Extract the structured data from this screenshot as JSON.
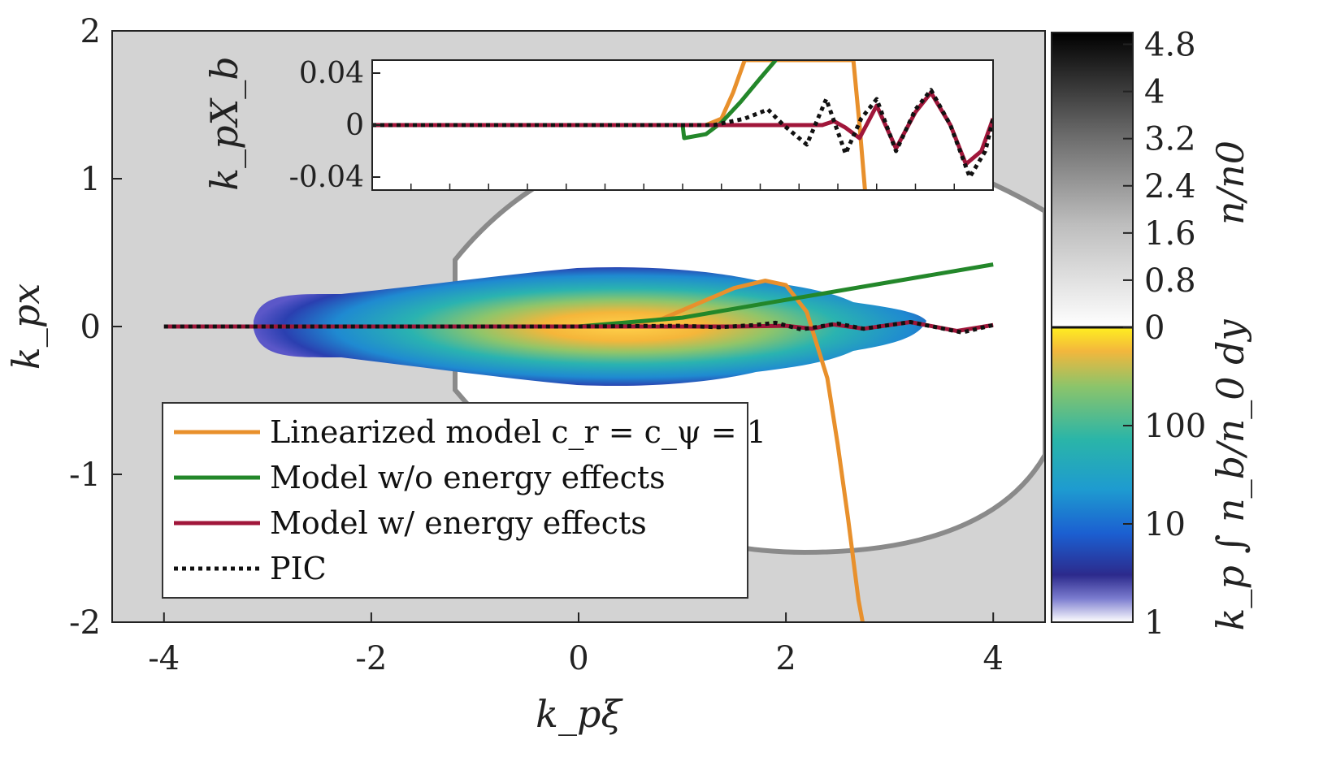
{
  "chart_data": [
    {
      "name": "main",
      "type": "line",
      "xlabel": "k_pξ",
      "ylabel": "k_px",
      "xlim": [
        -4.5,
        4.5
      ],
      "ylim": [
        -2,
        2
      ],
      "xticks": [
        -4,
        -2,
        0,
        2,
        4
      ],
      "xtick_labels": [
        "-4",
        "-2",
        "0",
        "2",
        "4"
      ],
      "yticks": [
        2,
        1,
        0,
        -1,
        -2
      ],
      "ytick_labels": [
        "2",
        "1",
        "0",
        "-1",
        "-2"
      ],
      "background": "density maps: plasma density n/n0 (grayscale) with beam density (color)",
      "legend": {
        "position": "lower-left",
        "entries": [
          {
            "label": "Linearized model c_r = c_ψ = 1",
            "color": "#e8902c",
            "style": "solid"
          },
          {
            "label": "Model w/o energy effects",
            "color": "#23872a",
            "style": "solid"
          },
          {
            "label": "Model w/ energy effects",
            "color": "#a0163a",
            "style": "solid"
          },
          {
            "label": "PIC",
            "color": "#111111",
            "style": "dotted"
          }
        ]
      },
      "series": [
        {
          "name": "Linearized model c_r = c_ψ = 1",
          "color": "#e8902c",
          "x": [
            0,
            0.4,
            0.8,
            1.2,
            1.5,
            1.8,
            2.0,
            2.2,
            2.4,
            2.5,
            2.6,
            2.7,
            2.74
          ],
          "y": [
            0,
            0.005,
            0.05,
            0.17,
            0.26,
            0.31,
            0.28,
            0.1,
            -0.35,
            -0.8,
            -1.3,
            -1.85,
            -2.0
          ]
        },
        {
          "name": "Model w/o energy effects",
          "color": "#23872a",
          "x": [
            0,
            1,
            2,
            3,
            4
          ],
          "y": [
            0,
            0.06,
            0.18,
            0.3,
            0.42
          ]
        },
        {
          "name": "Model w/ energy effects",
          "color": "#a0163a",
          "x": [
            -4,
            -3,
            -2,
            -1,
            0,
            1,
            1.5,
            2.0,
            2.25,
            2.45,
            2.75,
            3.2,
            3.65,
            4.0
          ],
          "y": [
            0,
            0,
            0,
            0,
            0,
            0,
            0,
            0.005,
            -0.015,
            0.015,
            -0.015,
            0.03,
            -0.03,
            0.01
          ]
        },
        {
          "name": "PIC",
          "color": "#111111",
          "x": [
            -4,
            -3,
            -2,
            -1,
            0,
            1,
            1.35,
            1.7,
            1.9,
            2.15,
            2.5,
            2.75,
            3.2,
            3.7,
            4.0
          ],
          "y": [
            0,
            0,
            0,
            0,
            0,
            0.005,
            -0.005,
            0.01,
            0.025,
            -0.02,
            0.02,
            -0.015,
            0.03,
            -0.04,
            0.01
          ]
        }
      ]
    },
    {
      "name": "inset",
      "type": "line",
      "ylabel": "k_pX_b",
      "xlim": [
        -4,
        4
      ],
      "ylim": [
        -0.05,
        0.05
      ],
      "yticks": [
        0.04,
        0,
        -0.04
      ],
      "ytick_labels": [
        "0.04",
        "0",
        "-0.04"
      ],
      "series": [
        {
          "name": "Linearized model c_r = c_ψ = 1",
          "color": "#e8902c",
          "x": [
            0,
            0.3,
            0.5,
            0.65,
            0.8,
            2.2,
            2.28,
            2.35
          ],
          "y": [
            0,
            0,
            0.005,
            0.025,
            0.05,
            0.05,
            0,
            -0.05
          ]
        },
        {
          "name": "Model w/o energy effects",
          "color": "#23872a",
          "x": [
            0,
            0.02,
            0.3,
            0.5,
            0.75,
            1.0,
            1.2
          ],
          "y": [
            0,
            -0.01,
            -0.007,
            0.002,
            0.018,
            0.036,
            0.05
          ]
        },
        {
          "name": "Model w/ energy effects",
          "color": "#a0163a",
          "x": [
            -4,
            1.8,
            1.95,
            2.1,
            2.28,
            2.5,
            2.75,
            3.0,
            3.2,
            3.45,
            3.65,
            3.85,
            4.0
          ],
          "y": [
            0,
            0,
            0.003,
            -0.002,
            -0.01,
            0.015,
            -0.018,
            0.01,
            0.025,
            0.0,
            -0.03,
            -0.02,
            0.005
          ]
        },
        {
          "name": "PIC",
          "color": "#111111",
          "x": [
            -4,
            0.4,
            0.8,
            1.1,
            1.3,
            1.6,
            1.85,
            2.1,
            2.3,
            2.5,
            2.75,
            3.0,
            3.2,
            3.45,
            3.7,
            3.9,
            4.0
          ],
          "y": [
            0,
            0,
            0.005,
            0.012,
            0,
            -0.015,
            0.02,
            -0.022,
            0.005,
            0.02,
            -0.02,
            0.012,
            0.027,
            0.0,
            -0.04,
            -0.02,
            0.005
          ]
        }
      ]
    },
    {
      "name": "colorbar",
      "type": "heatmap",
      "upper": {
        "label": "n/n0",
        "ticks": [
          0,
          0.8,
          1.6,
          2.4,
          3.2,
          4,
          4.8
        ],
        "tick_labels": [
          "0",
          "0.8",
          "1.6",
          "2.4",
          "3.2",
          "4",
          "4.8"
        ],
        "range": [
          0,
          5
        ]
      },
      "lower": {
        "label": "k_p ∫ n_b/n_0 dy",
        "scale": "log",
        "ticks": [
          1,
          10,
          100
        ],
        "tick_labels": [
          "1",
          "10",
          "100"
        ],
        "range": [
          1,
          1000
        ]
      }
    }
  ]
}
